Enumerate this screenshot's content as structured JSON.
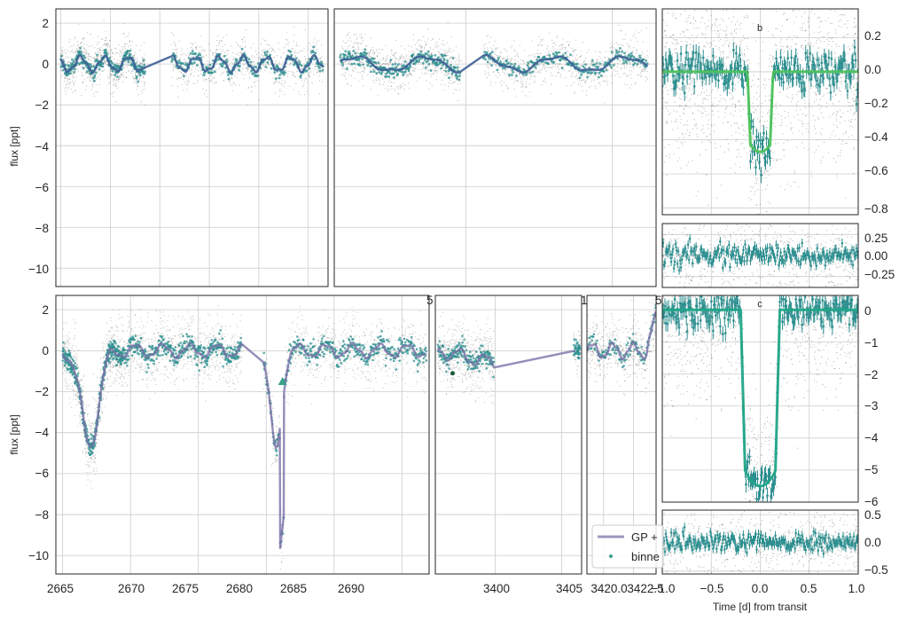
{
  "colors": {
    "points": "#000000",
    "binned": "#2a8d8e",
    "binned_light": "#3aa08c",
    "gp_model": "#7b70a8",
    "gp_trend": "#3f5f96",
    "transit_b": "#4cc25a",
    "transit_c": "#20a486",
    "grid": "#cccccc"
  },
  "chart_data": [
    {
      "type": "scatter",
      "panel": "top-left",
      "ylabel": "flux [ppt]",
      "xlim": [
        2664.5,
        2692.0
      ],
      "ylim": [
        -10.9,
        2.7
      ],
      "yticks": [
        2,
        0,
        -2,
        -4,
        -6,
        -8,
        -10
      ],
      "xticks": [
        2665,
        2670,
        2675,
        2680,
        2685,
        2690
      ],
      "series": [
        {
          "segments": [
            [
              2665.0,
              2673.5
            ],
            [
              2676.2,
              2691.5
            ]
          ],
          "level": 0.0,
          "scatter": 0.8
        }
      ]
    },
    {
      "type": "scatter",
      "panel": "top-middle",
      "xlim": [
        3395.5,
        3406.5
      ],
      "ylim": [
        -10.9,
        2.7
      ],
      "series": [
        {
          "segments": [
            [
              3395.7,
              3399.8
            ],
            [
              3400.6,
              3406.2
            ]
          ],
          "level": 0.0,
          "scatter": 0.8
        }
      ]
    },
    {
      "type": "scatter",
      "panel": "transit-b",
      "label": "b",
      "xlim": [
        -1.0,
        1.0
      ],
      "ylim": [
        -0.84,
        0.37
      ],
      "yticks": [
        0.2,
        0.0,
        -0.2,
        -0.4,
        -0.6,
        -0.8
      ],
      "tick_labels": [
        "0.2",
        "0.0",
        "−0.2",
        "−0.4",
        "−0.6",
        "−0.8"
      ],
      "transit": {
        "depth": 0.47,
        "half_width": 0.13
      }
    },
    {
      "type": "scatter",
      "panel": "residual-b",
      "xlim": [
        -1.0,
        1.0
      ],
      "ylim": [
        -0.38,
        0.38
      ],
      "yticks": [
        0.25,
        0.0,
        -0.25
      ],
      "tick_labels": [
        "0.25",
        "0.00",
        "−0.25"
      ]
    },
    {
      "type": "line",
      "panel": "bottom-left",
      "ylabel": "flux [ppt]",
      "xlim": [
        2664.5,
        2692.0
      ],
      "ylim": [
        -10.9,
        2.7
      ],
      "yticks": [
        2,
        0,
        -2,
        -4,
        -6,
        -8,
        -10
      ],
      "xticks": [
        2665,
        2670,
        2675,
        2680,
        2685,
        2690
      ],
      "tick_labels": [
        "2665",
        "2670",
        "2675",
        "2680",
        "2685",
        "2690"
      ],
      "marker": {
        "x": 2681.2,
        "y": -1.5,
        "shape": "triangle"
      }
    },
    {
      "type": "line",
      "panel": "bottom-middle",
      "xlim": [
        3395.5,
        3406.5
      ],
      "ylim": [
        -10.9,
        2.7
      ],
      "xticks": [
        3400,
        3405
      ],
      "tick_labels": [
        "3400",
        "3405"
      ],
      "marker": {
        "x": 3396.8,
        "y": -1.1,
        "shape": "dot"
      }
    },
    {
      "type": "line",
      "panel": "bottom-right",
      "xlim": [
        3418.6,
        3424.4
      ],
      "ylim": [
        -10.9,
        2.7
      ],
      "xticks": [
        3420.0,
        3422.5
      ],
      "tick_labels": [
        "3420.0",
        "3422.5"
      ],
      "legend": {
        "placement": "lower-right",
        "entries": [
          "GP +",
          "binne"
        ]
      }
    },
    {
      "type": "scatter",
      "panel": "transit-c",
      "label": "c",
      "xlim": [
        -1.0,
        1.0
      ],
      "ylim": [
        -6.0,
        0.45
      ],
      "yticks": [
        0,
        -1,
        -2,
        -3,
        -4,
        -5,
        -6
      ],
      "tick_labels": [
        "0",
        "−1",
        "−2",
        "−3",
        "−4",
        "−5",
        "−6"
      ],
      "transit": {
        "depth": 5.5,
        "half_width": 0.2
      }
    },
    {
      "type": "scatter",
      "panel": "residual-c",
      "xlabel": "Time [d] from transit",
      "xlim": [
        -1.0,
        1.0
      ],
      "ylim": [
        -0.55,
        0.58
      ],
      "yticks": [
        0.5,
        0.0,
        -0.5
      ],
      "tick_labels": [
        "0.5",
        "0.0",
        "−0.5"
      ],
      "xticks": [
        -1.0,
        -0.5,
        0.0,
        0.5,
        1.0
      ],
      "xtick_labels": [
        "−1.0",
        "−0.5",
        "0.0",
        "0.5",
        "1.0"
      ]
    }
  ],
  "top_ylabel": "flux [ppt]",
  "bottom_ylabel": "flux [ppt]",
  "transit_b_label": "b",
  "transit_c_label": "c",
  "residual_c_xlabel": "Time [d] from transit",
  "legend": {
    "gp_label": "GP +",
    "binned_label": "binne"
  },
  "top_left_yticks": [
    "2",
    "0",
    "−2",
    "−4",
    "−6",
    "−8",
    "−10"
  ],
  "bottom_left_yticks": [
    "2",
    "0",
    "−2",
    "−4",
    "−6",
    "−8",
    "−10"
  ],
  "bottom_left_xticks": [
    "2665",
    "2670",
    "2675",
    "2680",
    "2685",
    "2690"
  ],
  "bottom_middle_xticks": [
    "3400",
    "3405"
  ],
  "bottom_right_xticks": [
    "3420.0",
    "3422.5"
  ],
  "transit_b_yticks": [
    "0.2",
    "0.0",
    "−0.2",
    "−0.4",
    "−0.6",
    "−0.8"
  ],
  "residual_b_yticks": [
    "0.25",
    "0.00",
    "−0.25"
  ],
  "transit_c_yticks": [
    "0",
    "−1",
    "−2",
    "−3",
    "−4",
    "−5",
    "−6"
  ],
  "residual_c_yticks": [
    "0.5",
    "0.0",
    "−0.5"
  ],
  "residual_c_xticks": [
    "−1.0",
    "−0.5",
    "0.0",
    "0.5",
    "1.0"
  ],
  "clipped_ticks": {
    "top_middle_left": "5",
    "top_middle_right": "1",
    "top_right": "5"
  }
}
